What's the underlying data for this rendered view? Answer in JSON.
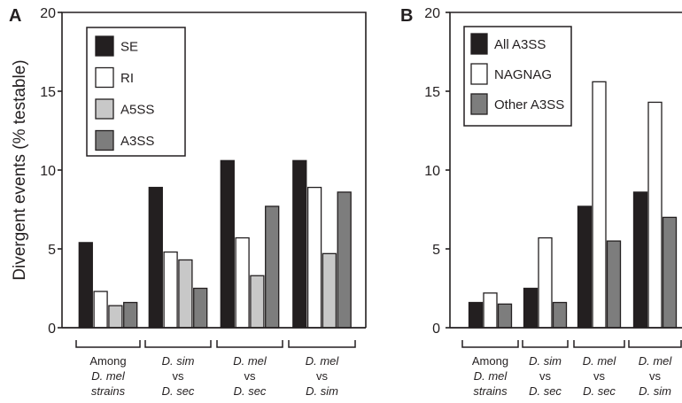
{
  "chart_data": [
    {
      "panel": "A",
      "type": "bar",
      "ylabel": "Divergent events (% testable)",
      "ylim": [
        0,
        20
      ],
      "yticks": [
        "0",
        "5",
        "10",
        "15",
        "20"
      ],
      "legend_position": "top-left",
      "categories": [
        [
          "Among",
          "D. mel",
          "strains"
        ],
        [
          "D. sim",
          "vs",
          "D. sec"
        ],
        [
          "D. mel",
          "vs",
          "D. sec"
        ],
        [
          "D. mel",
          "vs",
          "D. sim"
        ]
      ],
      "series": [
        {
          "name": "SE",
          "color": "#231f20",
          "values": [
            5.4,
            8.9,
            10.6,
            10.6
          ]
        },
        {
          "name": "RI",
          "color": "#ffffff",
          "values": [
            2.3,
            4.8,
            5.7,
            8.9
          ]
        },
        {
          "name": "A5SS",
          "color": "#c8c8c8",
          "values": [
            1.4,
            4.3,
            3.3,
            4.7
          ]
        },
        {
          "name": "A3SS",
          "color": "#7d7d7d",
          "values": [
            1.6,
            2.5,
            7.7,
            8.6
          ]
        }
      ]
    },
    {
      "panel": "B",
      "type": "bar",
      "ylim": [
        0,
        20
      ],
      "yticks": [
        "0",
        "5",
        "10",
        "15",
        "20"
      ],
      "legend_position": "top-left",
      "categories": [
        [
          "Among",
          "D. mel",
          "strains"
        ],
        [
          "D. sim",
          "vs",
          "D. sec"
        ],
        [
          "D. mel",
          "vs",
          "D. sec"
        ],
        [
          "D. mel",
          "vs",
          "D. sim"
        ]
      ],
      "series": [
        {
          "name": "All A3SS",
          "color": "#231f20",
          "values": [
            1.6,
            2.5,
            7.7,
            8.6
          ]
        },
        {
          "name": "NAGNAG",
          "color": "#ffffff",
          "values": [
            2.2,
            5.7,
            15.6,
            14.3
          ]
        },
        {
          "name": "Other A3SS",
          "color": "#7d7d7d",
          "values": [
            1.5,
            1.6,
            5.5,
            7.0
          ]
        }
      ]
    }
  ]
}
